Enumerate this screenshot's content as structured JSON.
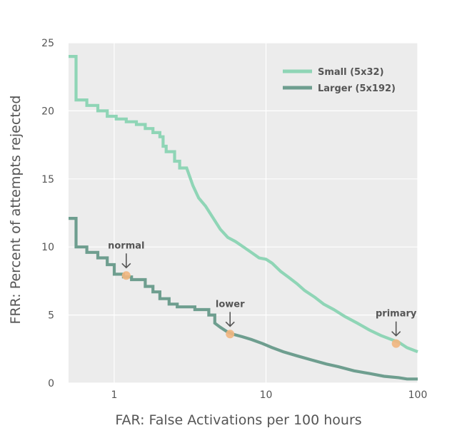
{
  "chart_data": {
    "type": "line",
    "title": "",
    "xlabel": "FAR: False Activations per 100 hours",
    "ylabel": "FRR: Percent of attempts rejected",
    "xscale": "log",
    "xlim": [
      0.5,
      100
    ],
    "ylim": [
      0,
      25
    ],
    "xticks": [
      1,
      10,
      100
    ],
    "xtick_labels": [
      "1",
      "10",
      "100"
    ],
    "yticks": [
      0,
      5,
      10,
      15,
      20,
      25
    ],
    "ytick_labels": [
      "0",
      "5",
      "10",
      "15",
      "20",
      "25"
    ],
    "grid": true,
    "legend_position": "top-right",
    "series": [
      {
        "name": "Small (5x32)",
        "color": "#8fd5b6",
        "step": true,
        "points": [
          [
            0.5,
            24.0
          ],
          [
            0.56,
            24.0
          ],
          [
            0.56,
            20.8
          ],
          [
            0.66,
            20.8
          ],
          [
            0.66,
            20.4
          ],
          [
            0.78,
            20.4
          ],
          [
            0.78,
            20.0
          ],
          [
            0.9,
            20.0
          ],
          [
            0.9,
            19.6
          ],
          [
            1.03,
            19.6
          ],
          [
            1.03,
            19.4
          ],
          [
            1.2,
            19.4
          ],
          [
            1.2,
            19.2
          ],
          [
            1.4,
            19.2
          ],
          [
            1.4,
            19.0
          ],
          [
            1.6,
            19.0
          ],
          [
            1.6,
            18.7
          ],
          [
            1.8,
            18.7
          ],
          [
            1.8,
            18.4
          ],
          [
            2.0,
            18.4
          ],
          [
            2.0,
            18.1
          ],
          [
            2.1,
            18.1
          ],
          [
            2.1,
            17.4
          ],
          [
            2.2,
            17.4
          ],
          [
            2.2,
            17.0
          ],
          [
            2.5,
            17.0
          ],
          [
            2.5,
            16.3
          ],
          [
            2.7,
            16.3
          ],
          [
            2.7,
            15.8
          ],
          [
            3.0,
            15.8
          ],
          [
            3.3,
            14.5
          ],
          [
            3.6,
            13.6
          ],
          [
            4.0,
            13.0
          ],
          [
            4.5,
            12.1
          ],
          [
            5.0,
            11.3
          ],
          [
            5.6,
            10.7
          ],
          [
            6.3,
            10.4
          ],
          [
            7.1,
            10.0
          ],
          [
            8.0,
            9.6
          ],
          [
            9.0,
            9.2
          ],
          [
            10.0,
            9.1
          ],
          [
            11.0,
            8.8
          ],
          [
            12.5,
            8.2
          ],
          [
            14.0,
            7.8
          ],
          [
            16.0,
            7.3
          ],
          [
            18.0,
            6.8
          ],
          [
            21.0,
            6.3
          ],
          [
            24.0,
            5.8
          ],
          [
            28.0,
            5.4
          ],
          [
            33.0,
            4.9
          ],
          [
            40.0,
            4.4
          ],
          [
            48.0,
            3.9
          ],
          [
            57.0,
            3.5
          ],
          [
            67.0,
            3.2
          ],
          [
            75.0,
            3.0
          ],
          [
            85.0,
            2.6
          ],
          [
            100.0,
            2.3
          ]
        ]
      },
      {
        "name": "Larger (5x192)",
        "color": "#6e9e8f",
        "step": true,
        "points": [
          [
            0.5,
            12.1
          ],
          [
            0.56,
            12.1
          ],
          [
            0.56,
            10.0
          ],
          [
            0.66,
            10.0
          ],
          [
            0.66,
            9.6
          ],
          [
            0.78,
            9.6
          ],
          [
            0.78,
            9.2
          ],
          [
            0.9,
            9.2
          ],
          [
            0.9,
            8.7
          ],
          [
            1.0,
            8.7
          ],
          [
            1.0,
            8.0
          ],
          [
            1.15,
            8.0
          ],
          [
            1.15,
            7.8
          ],
          [
            1.3,
            7.8
          ],
          [
            1.3,
            7.6
          ],
          [
            1.6,
            7.6
          ],
          [
            1.6,
            7.1
          ],
          [
            1.8,
            7.1
          ],
          [
            1.8,
            6.7
          ],
          [
            2.0,
            6.7
          ],
          [
            2.0,
            6.2
          ],
          [
            2.3,
            6.2
          ],
          [
            2.3,
            5.8
          ],
          [
            2.6,
            5.8
          ],
          [
            2.6,
            5.6
          ],
          [
            3.4,
            5.6
          ],
          [
            3.4,
            5.4
          ],
          [
            4.2,
            5.4
          ],
          [
            4.2,
            5.0
          ],
          [
            4.6,
            5.0
          ],
          [
            4.6,
            4.4
          ],
          [
            5.0,
            4.1
          ],
          [
            5.5,
            3.8
          ],
          [
            6.0,
            3.6
          ],
          [
            7.0,
            3.4
          ],
          [
            8.0,
            3.2
          ],
          [
            9.5,
            2.9
          ],
          [
            11.0,
            2.6
          ],
          [
            13.0,
            2.3
          ],
          [
            16.0,
            2.0
          ],
          [
            20.0,
            1.7
          ],
          [
            25.0,
            1.4
          ],
          [
            30.0,
            1.2
          ],
          [
            38.0,
            0.9
          ],
          [
            48.0,
            0.7
          ],
          [
            60.0,
            0.5
          ],
          [
            75.0,
            0.4
          ],
          [
            85.0,
            0.3
          ],
          [
            100.0,
            0.3
          ]
        ]
      }
    ],
    "annotations": [
      {
        "label": "normal",
        "x": 1.2,
        "y": 7.9,
        "series": "Larger (5x192)"
      },
      {
        "label": "lower",
        "x": 5.8,
        "y": 3.6,
        "series": "Larger (5x192)"
      },
      {
        "label": "primary",
        "x": 72.0,
        "y": 2.9,
        "series": "Small (5x32)"
      }
    ],
    "colors": {
      "plot_background": "#ececec",
      "grid": "#ffffff",
      "marker": "#f2b680",
      "arrow": "#555555",
      "text": "#555555"
    }
  }
}
